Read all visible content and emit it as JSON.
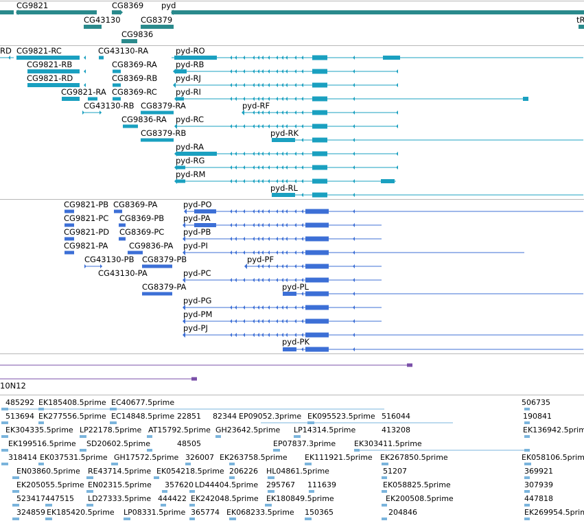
{
  "tracks": {
    "genes": {
      "labels": [
        "CG9821",
        "CG8369",
        "pyd",
        "CG43130",
        "CG8379",
        "CG9836",
        "tR"
      ],
      "color": "#2a8a8c"
    },
    "transcripts": {
      "labels": [
        "RD",
        "CG9821-RC",
        "CG43130-RA",
        "pyd-RO",
        "CG9821-RB",
        "CG8369-RA",
        "pyd-RB",
        "CG9821-RD",
        "CG8369-RB",
        "pyd-RJ",
        "CG9821-RA",
        "CG8369-RC",
        "pyd-RI",
        "CG43130-RB",
        "CG8379-RA",
        "pyd-RF",
        "CG9836-RA",
        "pyd-RC",
        "CG8379-RB",
        "pyd-RK",
        "pyd-RA",
        "pyd-RG",
        "pyd-RM",
        "pyd-RL"
      ],
      "color": "#1aa0c0"
    },
    "proteins": {
      "labels": [
        "CG9821-PB",
        "CG8369-PA",
        "pyd-PO",
        "CG9821-PC",
        "CG8369-PB",
        "pyd-PA",
        "CG9821-PD",
        "CG8369-PC",
        "pyd-PB",
        "CG9821-PA",
        "CG9836-PA",
        "pyd-PI",
        "CG43130-PB",
        "CG8379-PB",
        "pyd-PF",
        "CG43130-PA",
        "pyd-PC",
        "CG8379-PA",
        "pyd-PL",
        "pyd-PG",
        "pyd-PM",
        "pyd-PJ",
        "pyd-PK"
      ],
      "color": "#3c6fd6"
    },
    "clones": {
      "labels": [
        "10N12"
      ],
      "color": "#7a4fa8"
    },
    "ests": {
      "labels": [
        "485292",
        "EK185408.5prime",
        "EC40677.5prime",
        "506735",
        "513694",
        "EK277556.5prime",
        "EC14848.5prime",
        "22851",
        "82344",
        "EP09052.3prime",
        "EK095523.5prime",
        "516044",
        "190841",
        "EK304335.5prime",
        "LP22178.5prime",
        "AT15792.5prime",
        "GH23642.5prime",
        "LP14314.5prime",
        "413208",
        "EK136942.5prime",
        "EK199516.5prime",
        "SD20602.5prime",
        "48505",
        "EP07837.3prime",
        "EK303411.5prime",
        "318414",
        "EK037531.5prime",
        "GH17572.5prime",
        "326007",
        "EK263758.5prime",
        "EK111921.5prime",
        "EK267850.5prime",
        "EK058106.5prime",
        "EN03860.5prime",
        "RE43714.5prime",
        "EK054218.5prime",
        "206226",
        "HL04861.5prime",
        "51207",
        "369921",
        "EK205055.5prime",
        "EN02315.5prime",
        "357620",
        "LD44404.5prime",
        "295767",
        "111639",
        "EK058825.5prime",
        "307939",
        "523417",
        "447515",
        "LD27333.5prime",
        "444422",
        "EK242048.5prime",
        "EK180849.5prime",
        "EK200508.5prime",
        "447818",
        "324859",
        "EK185420.5prime",
        "LP08331.5prime",
        "365774",
        "EK068233.5prime",
        "150365",
        "204846",
        "EK269954.5prime"
      ],
      "color": "#7ab4dc"
    }
  }
}
